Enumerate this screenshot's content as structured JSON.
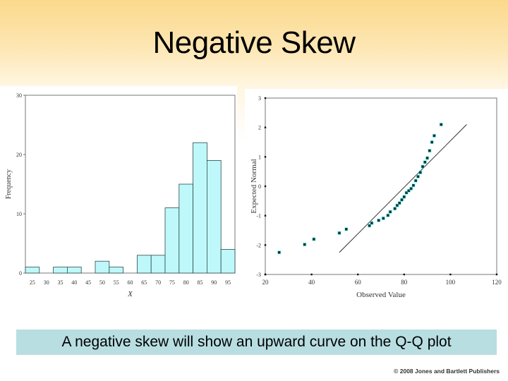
{
  "slide": {
    "title": "Negative Skew",
    "caption": "A negative skew will show an upward curve on the Q-Q plot",
    "copyright": "© 2008 Jones and Bartlett Publishers",
    "colors": {
      "header_top": "#fbd98c",
      "caption_bg": "#b8dee2",
      "bar_fill": "#bff8fa",
      "bar_stroke": "#2a4a4a",
      "point_fill": "#0a3a3a",
      "point_glow": "#3cf0f0"
    }
  },
  "chart_data": [
    {
      "type": "bar",
      "title": "",
      "xlabel": "X",
      "ylabel": "Frequency",
      "categories": [
        "25",
        "30",
        "35",
        "40",
        "45",
        "50",
        "55",
        "60",
        "65",
        "70",
        "75",
        "80",
        "85",
        "90",
        "95"
      ],
      "values": [
        1,
        0,
        1,
        1,
        0,
        2,
        1,
        0,
        3,
        3,
        11,
        15,
        22,
        19,
        4
      ],
      "ylim": [
        0,
        30
      ],
      "yticks": [
        0,
        10,
        20,
        30
      ],
      "grid": false,
      "legend": null
    },
    {
      "type": "scatter",
      "title": "",
      "xlabel": "Observed Value",
      "ylabel": "Expected Normal",
      "xlim": [
        20,
        120
      ],
      "ylim": [
        -3,
        3
      ],
      "xticks": [
        20,
        40,
        60,
        80,
        100,
        120
      ],
      "yticks": [
        -3,
        -2,
        -1,
        0,
        1,
        2,
        3
      ],
      "grid": false,
      "legend": null,
      "points": [
        [
          26,
          -2.25
        ],
        [
          37,
          -1.98
        ],
        [
          41,
          -1.8
        ],
        [
          52,
          -1.59
        ],
        [
          55,
          -1.46
        ],
        [
          65,
          -1.34
        ],
        [
          66,
          -1.25
        ],
        [
          69,
          -1.16
        ],
        [
          71,
          -1.09
        ],
        [
          73,
          -0.99
        ],
        [
          74,
          -0.87
        ],
        [
          76,
          -0.76
        ],
        [
          77,
          -0.65
        ],
        [
          78,
          -0.57
        ],
        [
          79,
          -0.46
        ],
        [
          80,
          -0.36
        ],
        [
          81,
          -0.22
        ],
        [
          82,
          -0.15
        ],
        [
          83,
          -0.08
        ],
        [
          84,
          0.03
        ],
        [
          85,
          0.19
        ],
        [
          86,
          0.33
        ],
        [
          87,
          0.47
        ],
        [
          88,
          0.67
        ],
        [
          89,
          0.82
        ],
        [
          90,
          0.96
        ],
        [
          91,
          1.21
        ],
        [
          92,
          1.5
        ],
        [
          93,
          1.72
        ],
        [
          96,
          2.1
        ]
      ],
      "reference_line": [
        [
          52,
          -2.25
        ],
        [
          107,
          2.1
        ]
      ]
    }
  ]
}
